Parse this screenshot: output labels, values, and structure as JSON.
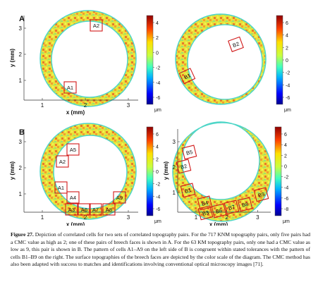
{
  "panels": [
    {
      "id": "A-left",
      "label": "A",
      "xlabel": "x (mm)",
      "ylabel": "y (mm)",
      "xticks": [
        "1",
        "2",
        "3"
      ],
      "yticks": [
        "3",
        "2",
        "1"
      ],
      "cells": [
        "A2",
        "A1"
      ]
    },
    {
      "id": "A-right",
      "xticks": [],
      "yticks": [],
      "cells": [
        "B2",
        "B1"
      ]
    },
    {
      "id": "B-left",
      "label": "B",
      "xlabel": "x (mm)",
      "ylabel": "y (mm)",
      "xticks": [
        "1",
        "2",
        "3"
      ],
      "yticks": [
        "3",
        "2",
        "1"
      ],
      "cells": [
        "A5",
        "A2",
        "A1",
        "A4",
        "A9",
        "A3",
        "A6",
        "A7",
        "A8"
      ]
    },
    {
      "id": "B-right",
      "xlabel": "x (mm)",
      "ylabel": "y (mm)",
      "xticks": [
        "1",
        "2",
        "3"
      ],
      "yticks": [
        "3",
        "2",
        "1"
      ],
      "cells": [
        "B5",
        "B2",
        "B1",
        "B4",
        "B3",
        "B6",
        "B7",
        "B8",
        "B9"
      ]
    }
  ],
  "colorbars": [
    {
      "id": "cb-a-left",
      "ticks": [
        "4",
        "2",
        "0",
        "-2",
        "-4",
        "-6"
      ],
      "unit": "μm"
    },
    {
      "id": "cb-a-right",
      "ticks": [
        "6",
        "4",
        "2",
        "0",
        "-2",
        "-4",
        "-6"
      ],
      "unit": "μm"
    },
    {
      "id": "cb-b-left",
      "ticks": [
        "6",
        "4",
        "2",
        "0",
        "-2",
        "-4",
        "-6"
      ],
      "unit": "μm"
    },
    {
      "id": "cb-b-right",
      "ticks": [
        "6",
        "4",
        "2",
        "0",
        "-2",
        "-4",
        "-6",
        "-8"
      ],
      "unit": "μm"
    }
  ],
  "caption": {
    "label": "Figure 27.",
    "text": " Depiction of correlated cells for two sets of correlated topography pairs. For the 717 KNM topography pairs, only five pairs had a CMC value as high as 2; one of these pairs of breech faces is shown in A. For the 63 KM topography pairs, only one had a CMC value as low as 9, this pair is shown in B. The pattern of cells A1–A9 on the left side of B is congruent within stated tolerances with the pattern of cells B1–B9 on the right. The surface topographies of the breech faces are depicted by the color scale of the diagram. The CMC method has also been adapted with success to matches and identifications involving conventional optical microscopy images [71]."
  },
  "colors": {
    "cell_box": "#d11a1a",
    "text": "#111111"
  }
}
